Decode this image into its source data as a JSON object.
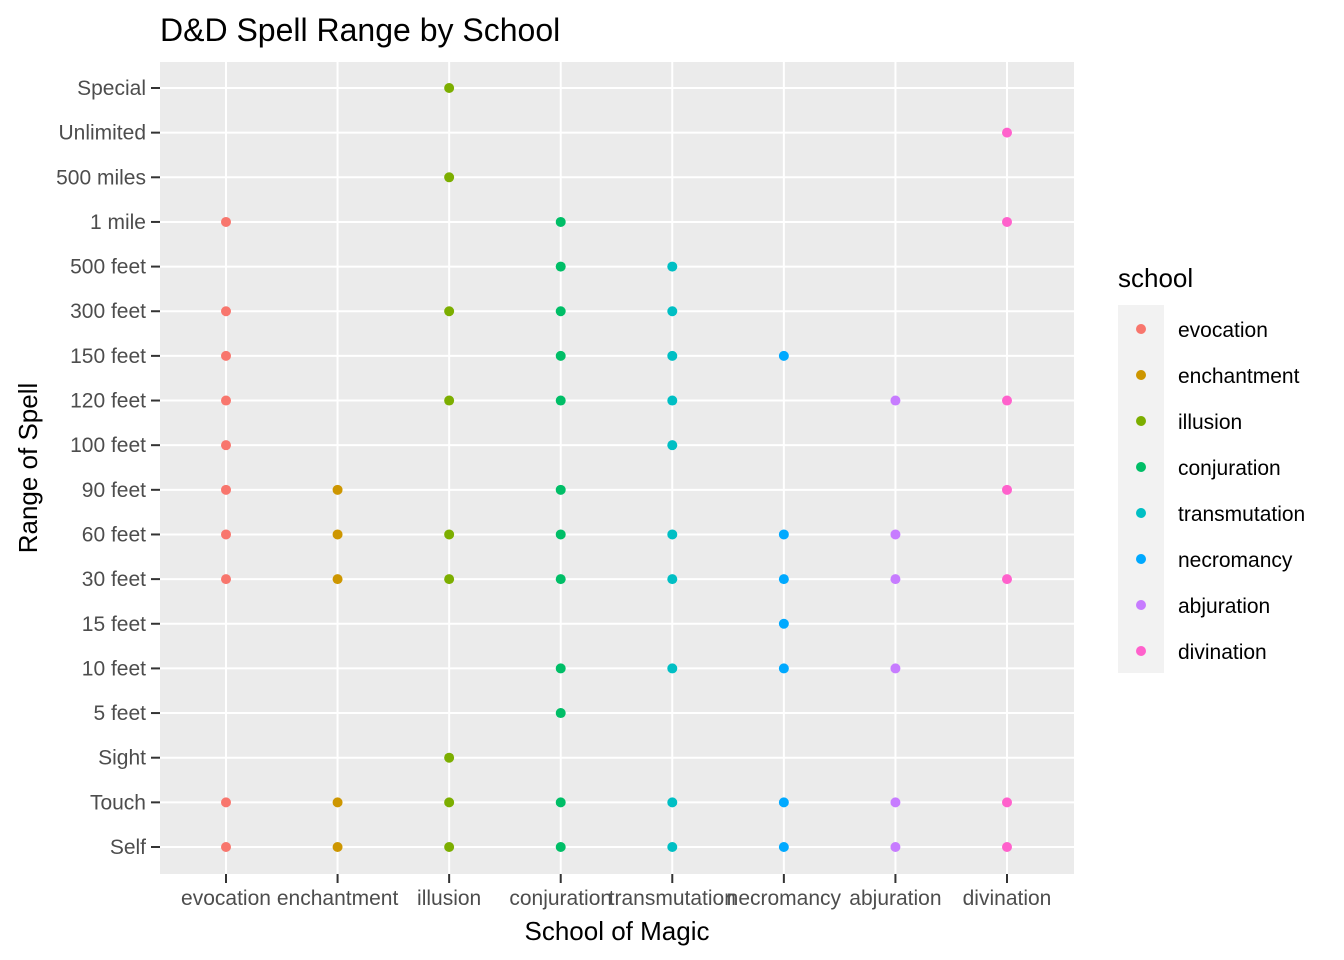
{
  "chart_data": {
    "type": "scatter",
    "title": "D&D Spell Range by School",
    "xlabel": "School of Magic",
    "ylabel": "Range of Spell",
    "grid": true,
    "legend_position": "right",
    "legend_title": "school",
    "categories": [
      "evocation",
      "enchantment",
      "illusion",
      "conjuration",
      "transmutation",
      "necromancy",
      "abjuration",
      "divination"
    ],
    "y_categories": [
      "Self",
      "Touch",
      "Sight",
      "5 feet",
      "10 feet",
      "15 feet",
      "30 feet",
      "60 feet",
      "90 feet",
      "100 feet",
      "120 feet",
      "150 feet",
      "300 feet",
      "500 feet",
      "1 mile",
      "500 miles",
      "Unlimited",
      "Special"
    ],
    "series": [
      {
        "name": "evocation",
        "color": "#F8766D",
        "values": [
          "Self",
          "Touch",
          "30 feet",
          "60 feet",
          "90 feet",
          "100 feet",
          "120 feet",
          "150 feet",
          "300 feet",
          "1 mile"
        ]
      },
      {
        "name": "enchantment",
        "color": "#CD9600",
        "values": [
          "Self",
          "Touch",
          "30 feet",
          "60 feet",
          "90 feet"
        ]
      },
      {
        "name": "illusion",
        "color": "#7CAE00",
        "values": [
          "Self",
          "Touch",
          "Sight",
          "30 feet",
          "60 feet",
          "120 feet",
          "300 feet",
          "500 miles",
          "Special"
        ]
      },
      {
        "name": "conjuration",
        "color": "#00BE67",
        "values": [
          "Self",
          "Touch",
          "5 feet",
          "10 feet",
          "30 feet",
          "60 feet",
          "90 feet",
          "120 feet",
          "150 feet",
          "300 feet",
          "500 feet",
          "1 mile"
        ]
      },
      {
        "name": "transmutation",
        "color": "#00BFC4",
        "values": [
          "Self",
          "Touch",
          "10 feet",
          "30 feet",
          "60 feet",
          "100 feet",
          "120 feet",
          "150 feet",
          "300 feet",
          "500 feet"
        ]
      },
      {
        "name": "necromancy",
        "color": "#00A9FF",
        "values": [
          "Self",
          "Touch",
          "10 feet",
          "15 feet",
          "30 feet",
          "60 feet",
          "150 feet"
        ]
      },
      {
        "name": "abjuration",
        "color": "#C77CFF",
        "values": [
          "Self",
          "Touch",
          "10 feet",
          "30 feet",
          "60 feet",
          "120 feet"
        ]
      },
      {
        "name": "divination",
        "color": "#FF61CC",
        "values": [
          "Self",
          "Touch",
          "30 feet",
          "90 feet",
          "120 feet",
          "1 mile",
          "Unlimited"
        ]
      }
    ]
  }
}
